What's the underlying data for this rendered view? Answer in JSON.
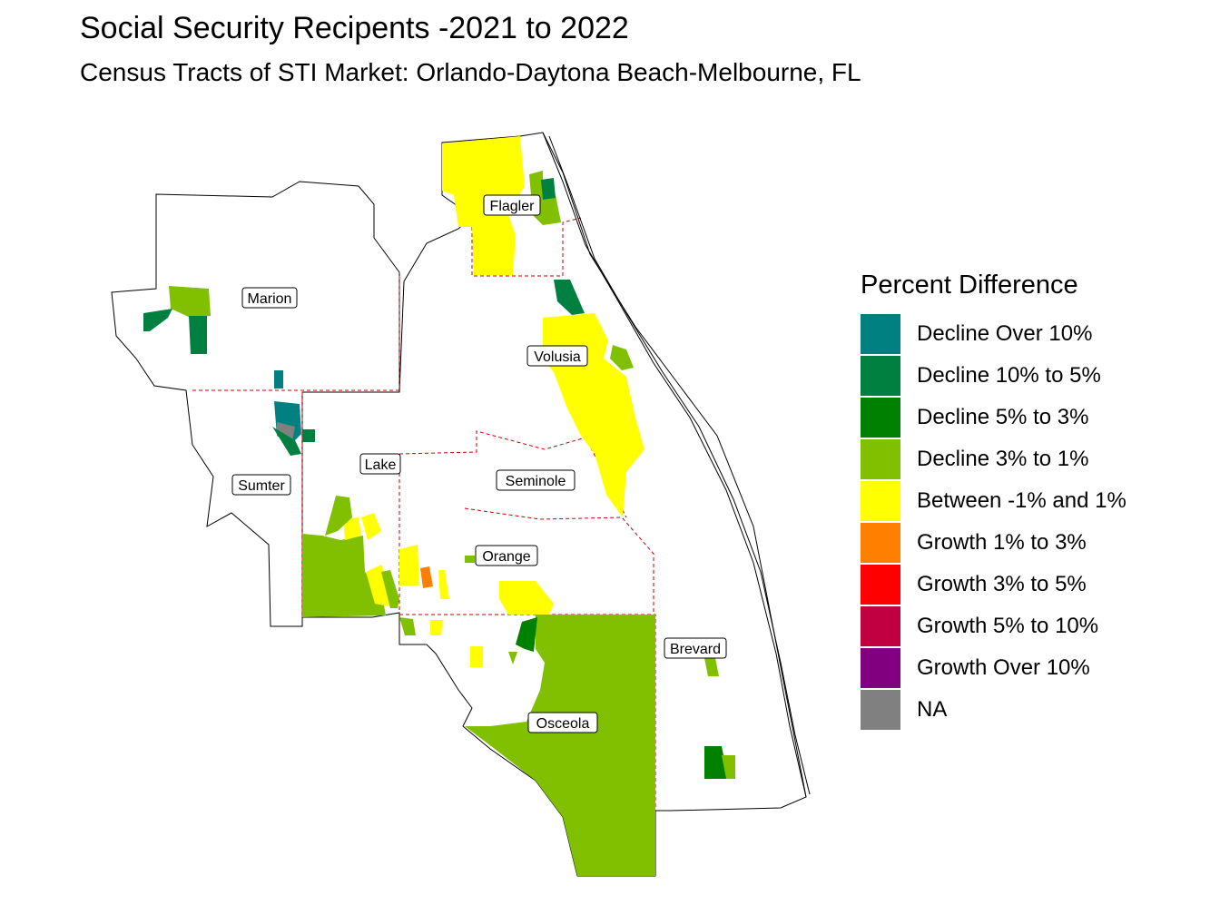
{
  "title": "Social Security Recipents -2021 to 2022",
  "subtitle": "Census Tracts of STI Market: Orlando-Daytona Beach-Melbourne, FL",
  "legend": {
    "title": "Percent Difference",
    "items": [
      {
        "label": "Decline Over 10%",
        "color": "#008080"
      },
      {
        "label": "Decline 10% to 5%",
        "color": "#008040"
      },
      {
        "label": "Decline 5% to 3%",
        "color": "#008000"
      },
      {
        "label": "Decline 3% to 1%",
        "color": "#80c000"
      },
      {
        "label": "Between -1% and 1%",
        "color": "#ffff00"
      },
      {
        "label": "Growth 1% to 3%",
        "color": "#ff8000"
      },
      {
        "label": "Growth 3% to 5%",
        "color": "#ff0000"
      },
      {
        "label": "Growth 5% to 10%",
        "color": "#c00040"
      },
      {
        "label": "Growth Over 10%",
        "color": "#800080"
      },
      {
        "label": "NA",
        "color": "#808080"
      }
    ]
  },
  "counties": {
    "flagler": "Flagler",
    "marion": "Marion",
    "volusia": "Volusia",
    "sumter": "Sumter",
    "lake": "Lake",
    "seminole": "Seminole",
    "orange": "Orange",
    "brevard": "Brevard",
    "osceola": "Osceola"
  }
}
